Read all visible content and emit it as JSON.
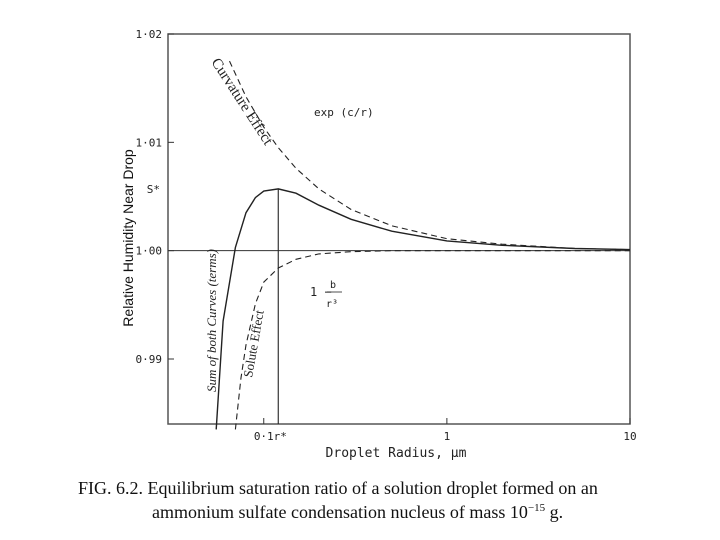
{
  "slide": {
    "ylabel": "Relative Humidity Near Drop",
    "caption_line1": "FIG. 6.2. Equilibrium saturation ratio of a solution droplet formed on an",
    "caption_line2_pre": "ammonium sulfate condensation nucleus of mass 10",
    "caption_line2_exp": "−15",
    "caption_line2_post": " g."
  },
  "chart_data": {
    "type": "line",
    "xlabel": "Droplet Radius, μm",
    "x_scale": "log",
    "xlim": [
      0.03,
      10
    ],
    "ylim": [
      0.984,
      1.02
    ],
    "x_tick_labels": [
      {
        "x": 0.1,
        "label": "0·1"
      },
      {
        "x": 1,
        "label": "1"
      },
      {
        "x": 10,
        "label": "10"
      }
    ],
    "x_marker": {
      "x": 0.12,
      "label": "r*"
    },
    "y_tick_labels": [
      {
        "y": 1.02,
        "label": "1·02"
      },
      {
        "y": 1.01,
        "label": "1·01"
      },
      {
        "y": 1.0,
        "label": "1·00"
      },
      {
        "y": 0.99,
        "label": "0·99"
      }
    ],
    "y_marker": {
      "y": 1.0057,
      "label": "S*"
    },
    "reference_line": {
      "y": 1.0
    },
    "series": [
      {
        "name": "Curvature Effect",
        "expression": "exp (c/r)",
        "style": "dashed",
        "points": [
          [
            0.065,
            1.0175
          ],
          [
            0.08,
            1.0142
          ],
          [
            0.1,
            1.0114
          ],
          [
            0.12,
            1.0095
          ],
          [
            0.15,
            1.0076
          ],
          [
            0.2,
            1.0057
          ],
          [
            0.3,
            1.0038
          ],
          [
            0.5,
            1.0023
          ],
          [
            1,
            1.0011
          ],
          [
            2,
            1.0006
          ],
          [
            5,
            1.0002
          ],
          [
            10,
            1.0001
          ]
        ]
      },
      {
        "name": "Solute Effect",
        "expression": "1 − b/r³",
        "style": "dashed",
        "points": [
          [
            0.07,
            0.9835
          ],
          [
            0.075,
            0.9882
          ],
          [
            0.08,
            0.9913
          ],
          [
            0.09,
            0.9951
          ],
          [
            0.1,
            0.9971
          ],
          [
            0.12,
            0.9984
          ],
          [
            0.15,
            0.9992
          ],
          [
            0.2,
            0.9997
          ],
          [
            0.3,
            0.9999
          ],
          [
            0.5,
            1.0
          ],
          [
            10,
            1.0
          ]
        ]
      },
      {
        "name": "Sum of both Curves (terms)",
        "style": "solid",
        "points": [
          [
            0.055,
            0.9835
          ],
          [
            0.06,
            0.9935
          ],
          [
            0.07,
            1.0003
          ],
          [
            0.08,
            1.0035
          ],
          [
            0.09,
            1.0049
          ],
          [
            0.1,
            1.0055
          ],
          [
            0.12,
            1.0057
          ],
          [
            0.15,
            1.0053
          ],
          [
            0.2,
            1.0042
          ],
          [
            0.3,
            1.0029
          ],
          [
            0.5,
            1.0018
          ],
          [
            1,
            1.0009
          ],
          [
            2,
            1.0005
          ],
          [
            5,
            1.0002
          ],
          [
            10,
            1.0001
          ]
        ]
      }
    ]
  }
}
